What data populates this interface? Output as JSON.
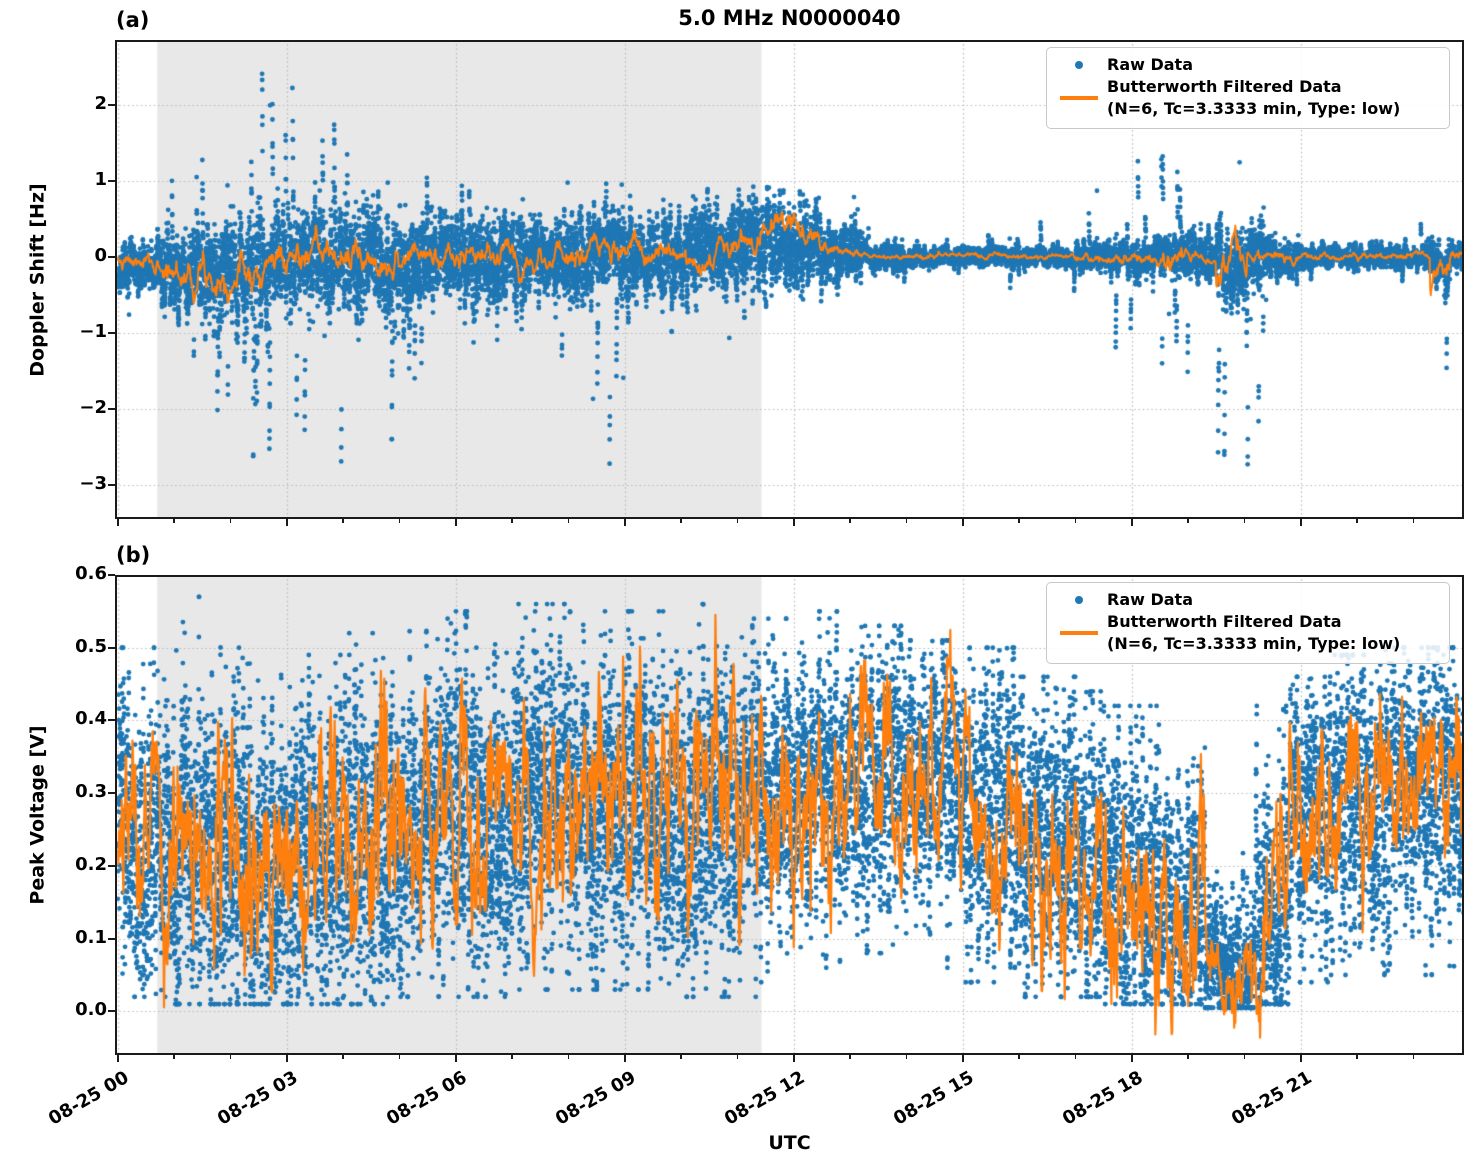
{
  "figure": {
    "title": "5.0 MHz N0000040",
    "xlabel": "UTC"
  },
  "legend": {
    "raw_label": "Raw Data",
    "filtered_label": "Butterworth Filtered Data",
    "filtered_sublabel": "(N=6, Tc=3.3333 min, Type: low)"
  },
  "colors": {
    "raw": "#1f77b4",
    "filtered": "#ff7f0e",
    "shade": "#e8e8e8",
    "grid": "#b9b9b9",
    "spine": "#1a1a1a"
  },
  "chart_data": [
    {
      "type": "scatter",
      "panel_label": "(a)",
      "title": "5.0 MHz N0000040",
      "ylabel": "Doppler Shift [Hz]",
      "xlabel": "UTC",
      "ylim": [
        -3.45,
        2.85
      ],
      "xlim": [
        -0.05,
        23.9
      ],
      "yticks": [
        {
          "v": 2,
          "label": "2"
        },
        {
          "v": 1,
          "label": "1"
        },
        {
          "v": 0,
          "label": "0"
        },
        {
          "v": -1,
          "label": "−1"
        },
        {
          "v": -2,
          "label": "−2"
        },
        {
          "v": -3,
          "label": "−3"
        }
      ],
      "xticks": [
        {
          "h": 0,
          "label": "08-25 00"
        },
        {
          "h": 3,
          "label": "08-25 03"
        },
        {
          "h": 6,
          "label": "08-25 06"
        },
        {
          "h": 9,
          "label": "08-25 09"
        },
        {
          "h": 12,
          "label": "08-25 12"
        },
        {
          "h": 15,
          "label": "08-25 15"
        },
        {
          "h": 18,
          "label": "08-25 18"
        },
        {
          "h": 21,
          "label": "08-25 21"
        }
      ],
      "xminor_hours": [
        1,
        2,
        4,
        5,
        7,
        8,
        10,
        11,
        13,
        14,
        16,
        17,
        19,
        20,
        22,
        23
      ],
      "show_xtick_labels": false,
      "shaded_region": {
        "start_hour": 0.7,
        "end_hour": 11.43
      },
      "series": {
        "raw": {
          "name": "Raw Data",
          "samples_per_hour": 720,
          "marker_radius": 2.4,
          "bins": [
            [
              0.0,
              0.7,
              -0.15,
              0.15,
              -0.85,
              0.6,
              0.006
            ],
            [
              0.7,
              1.2,
              -0.2,
              0.22,
              -1.5,
              1.2,
              0.012
            ],
            [
              1.2,
              2.0,
              -0.25,
              0.3,
              -3.2,
              1.35,
              0.022
            ],
            [
              2.0,
              3.0,
              -0.15,
              0.32,
              -3.1,
              2.62,
              0.026
            ],
            [
              3.0,
              4.0,
              -0.08,
              0.32,
              -2.7,
              2.45,
              0.026
            ],
            [
              4.0,
              5.0,
              -0.08,
              0.3,
              -2.4,
              1.8,
              0.02
            ],
            [
              5.0,
              6.0,
              -0.03,
              0.26,
              -1.6,
              1.4,
              0.016
            ],
            [
              6.0,
              7.0,
              0.0,
              0.28,
              -1.7,
              1.4,
              0.017
            ],
            [
              7.0,
              8.0,
              -0.02,
              0.25,
              -1.3,
              1.1,
              0.014
            ],
            [
              8.0,
              9.0,
              0.0,
              0.26,
              -3.05,
              1.2,
              0.014
            ],
            [
              9.0,
              10.0,
              0.02,
              0.24,
              -1.0,
              1.05,
              0.012
            ],
            [
              10.0,
              11.0,
              0.05,
              0.26,
              -1.2,
              1.1,
              0.013
            ],
            [
              11.0,
              11.7,
              0.2,
              0.3,
              -0.8,
              1.1,
              0.014
            ],
            [
              11.7,
              12.5,
              0.12,
              0.26,
              -0.6,
              1.0,
              0.012
            ],
            [
              12.5,
              13.2,
              0.05,
              0.16,
              -0.5,
              0.9,
              0.008
            ],
            [
              13.2,
              14.0,
              0.02,
              0.09,
              -0.45,
              0.6,
              0.004
            ],
            [
              14.0,
              15.0,
              0.0,
              0.06,
              -0.4,
              0.5,
              0.003
            ],
            [
              15.0,
              15.8,
              0.0,
              0.06,
              -0.5,
              0.55,
              0.003
            ],
            [
              15.8,
              16.0,
              0.0,
              0.08,
              -0.6,
              1.75,
              0.006
            ],
            [
              16.0,
              17.0,
              0.0,
              0.06,
              -0.55,
              0.6,
              0.003
            ],
            [
              17.0,
              18.0,
              0.0,
              0.1,
              -1.45,
              1.55,
              0.008
            ],
            [
              18.0,
              19.0,
              0.0,
              0.13,
              -1.6,
              1.6,
              0.012
            ],
            [
              19.0,
              19.5,
              -0.02,
              0.15,
              -1.6,
              1.3,
              0.015
            ],
            [
              19.5,
              20.35,
              -0.08,
              0.25,
              -2.85,
              1.45,
              0.028
            ],
            [
              20.35,
              21.0,
              0.0,
              0.12,
              -1.0,
              0.9,
              0.007
            ],
            [
              21.0,
              22.0,
              0.0,
              0.07,
              -0.65,
              1.4,
              0.004
            ],
            [
              22.0,
              23.2,
              0.0,
              0.07,
              -0.8,
              0.55,
              0.004
            ],
            [
              23.2,
              23.65,
              -0.04,
              0.12,
              -1.5,
              0.55,
              0.01
            ],
            [
              23.65,
              23.9,
              0.0,
              0.08,
              -0.5,
              0.5,
              0.005
            ]
          ]
        },
        "filtered": {
          "name": "Butterworth Filtered Data (N=6, Tc=3.3333 min, Type: low)",
          "line_width": 2.0,
          "noise_corr": 0.88,
          "noise_gain": 0.46,
          "segments": [
            [
              0.0,
              0.8,
              -0.1,
              -0.14,
              0.07
            ],
            [
              0.8,
              2.2,
              -0.18,
              -0.2,
              0.15
            ],
            [
              2.2,
              3.0,
              -0.1,
              -0.02,
              0.15
            ],
            [
              3.0,
              5.0,
              -0.02,
              -0.02,
              0.13
            ],
            [
              5.0,
              8.0,
              0.0,
              0.0,
              0.1
            ],
            [
              8.0,
              11.0,
              0.02,
              0.05,
              0.1
            ],
            [
              11.0,
              11.45,
              0.08,
              0.3,
              0.1
            ],
            [
              11.45,
              11.95,
              0.45,
              0.55,
              0.09
            ],
            [
              11.95,
              12.6,
              0.42,
              0.18,
              0.09
            ],
            [
              12.6,
              13.2,
              0.14,
              0.04,
              0.05
            ],
            [
              13.2,
              17.0,
              0.01,
              0.01,
              0.022
            ],
            [
              17.0,
              18.55,
              0.0,
              0.0,
              0.045
            ],
            [
              18.55,
              18.9,
              0.1,
              0.04,
              0.1
            ],
            [
              18.9,
              19.5,
              0.0,
              -0.02,
              0.05
            ],
            [
              19.5,
              20.05,
              -0.16,
              -0.08,
              0.15
            ],
            [
              20.05,
              21.0,
              0.01,
              0.0,
              0.045
            ],
            [
              21.0,
              23.3,
              0.0,
              0.0,
              0.028
            ],
            [
              23.3,
              23.65,
              -0.22,
              -0.1,
              0.14
            ],
            [
              23.65,
              23.9,
              0.0,
              0.0,
              0.04
            ]
          ]
        }
      }
    },
    {
      "type": "scatter",
      "panel_label": "(b)",
      "title": "",
      "ylabel": "Peak Voltage [V]",
      "xlabel": "UTC",
      "ylim": [
        -0.06,
        0.6
      ],
      "xlim": [
        -0.05,
        23.9
      ],
      "yticks": [
        {
          "v": 0.6,
          "label": "0.6"
        },
        {
          "v": 0.5,
          "label": "0.5"
        },
        {
          "v": 0.4,
          "label": "0.4"
        },
        {
          "v": 0.3,
          "label": "0.3"
        },
        {
          "v": 0.2,
          "label": "0.2"
        },
        {
          "v": 0.1,
          "label": "0.1"
        },
        {
          "v": 0.0,
          "label": "0.0"
        }
      ],
      "xticks": [
        {
          "h": 0,
          "label": "08-25 00"
        },
        {
          "h": 3,
          "label": "08-25 03"
        },
        {
          "h": 6,
          "label": "08-25 06"
        },
        {
          "h": 9,
          "label": "08-25 09"
        },
        {
          "h": 12,
          "label": "08-25 12"
        },
        {
          "h": 15,
          "label": "08-25 15"
        },
        {
          "h": 18,
          "label": "08-25 18"
        },
        {
          "h": 21,
          "label": "08-25 21"
        }
      ],
      "xminor_hours": [
        1,
        2,
        4,
        5,
        7,
        8,
        10,
        11,
        13,
        14,
        16,
        17,
        19,
        20,
        22,
        23
      ],
      "show_xtick_labels": true,
      "shaded_region": {
        "start_hour": 0.7,
        "end_hour": 11.43
      },
      "series": {
        "raw": {
          "name": "Raw Data",
          "samples_per_hour": 720,
          "marker_radius": 2.4,
          "bins": [
            [
              0.0,
              1.0,
              0.25,
              0.1,
              0.02,
              0.5,
              0.012
            ],
            [
              1.0,
              2.0,
              0.22,
              0.11,
              0.01,
              0.57,
              0.014
            ],
            [
              2.0,
              3.0,
              0.2,
              0.11,
              0.01,
              0.5,
              0.014
            ],
            [
              3.0,
              4.0,
              0.21,
              0.11,
              0.01,
              0.49,
              0.014
            ],
            [
              4.0,
              5.0,
              0.22,
              0.11,
              0.01,
              0.52,
              0.014
            ],
            [
              5.0,
              6.0,
              0.26,
              0.11,
              0.02,
              0.54,
              0.013
            ],
            [
              6.0,
              7.0,
              0.27,
              0.11,
              0.02,
              0.55,
              0.013
            ],
            [
              7.0,
              8.0,
              0.29,
              0.11,
              0.03,
              0.56,
              0.012
            ],
            [
              8.0,
              9.0,
              0.29,
              0.11,
              0.03,
              0.55,
              0.012
            ],
            [
              9.0,
              10.0,
              0.29,
              0.11,
              0.03,
              0.55,
              0.012
            ],
            [
              10.0,
              11.0,
              0.28,
              0.11,
              0.02,
              0.56,
              0.012
            ],
            [
              11.0,
              12.0,
              0.29,
              0.11,
              0.02,
              0.54,
              0.012
            ],
            [
              12.0,
              13.0,
              0.32,
              0.09,
              0.06,
              0.55,
              0.01
            ],
            [
              13.0,
              14.0,
              0.33,
              0.09,
              0.08,
              0.53,
              0.01
            ],
            [
              14.0,
              15.0,
              0.31,
              0.09,
              0.06,
              0.51,
              0.01
            ],
            [
              15.0,
              16.0,
              0.29,
              0.1,
              0.04,
              0.5,
              0.01
            ],
            [
              16.0,
              17.0,
              0.24,
              0.1,
              0.02,
              0.46,
              0.01
            ],
            [
              17.0,
              17.5,
              0.21,
              0.1,
              0.02,
              0.44,
              0.01
            ],
            [
              17.5,
              18.5,
              0.17,
              0.1,
              0.01,
              0.42,
              0.012
            ],
            [
              18.5,
              19.3,
              0.14,
              0.09,
              0.01,
              0.4,
              0.012
            ],
            [
              19.3,
              20.2,
              0.06,
              0.05,
              0.005,
              0.28,
              0.01
            ],
            [
              20.2,
              20.8,
              0.15,
              0.1,
              0.01,
              0.42,
              0.012
            ],
            [
              20.8,
              21.5,
              0.26,
              0.1,
              0.04,
              0.46,
              0.01
            ],
            [
              21.5,
              22.5,
              0.29,
              0.1,
              0.05,
              0.49,
              0.01
            ],
            [
              22.5,
              23.9,
              0.31,
              0.1,
              0.05,
              0.5,
              0.01
            ]
          ]
        },
        "filtered": {
          "name": "Butterworth Filtered Data (N=6, Tc=3.3333 min, Type: low)",
          "line_width": 2.2,
          "noise_corr": 0.8,
          "noise_gain": 0.6,
          "segments": [
            [
              0.0,
              1.0,
              0.27,
              0.24,
              0.08
            ],
            [
              1.0,
              5.0,
              0.22,
              0.22,
              0.09
            ],
            [
              5.0,
              7.0,
              0.26,
              0.27,
              0.08
            ],
            [
              7.0,
              12.0,
              0.28,
              0.29,
              0.08
            ],
            [
              12.0,
              15.0,
              0.31,
              0.31,
              0.07
            ],
            [
              15.0,
              16.0,
              0.29,
              0.27,
              0.07
            ],
            [
              16.0,
              17.5,
              0.23,
              0.19,
              0.07
            ],
            [
              17.5,
              18.5,
              0.17,
              0.15,
              0.08
            ],
            [
              18.5,
              19.3,
              0.14,
              0.1,
              0.07
            ],
            [
              19.3,
              19.8,
              0.08,
              0.04,
              0.03
            ],
            [
              19.8,
              20.3,
              0.04,
              0.08,
              0.04
            ],
            [
              20.3,
              20.9,
              0.12,
              0.25,
              0.08
            ],
            [
              20.9,
              22.0,
              0.27,
              0.29,
              0.07
            ],
            [
              22.0,
              23.9,
              0.3,
              0.33,
              0.07
            ]
          ]
        }
      }
    }
  ]
}
